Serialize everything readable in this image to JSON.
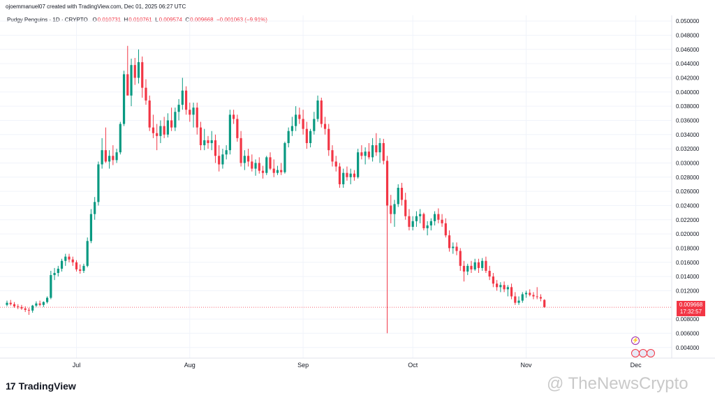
{
  "header": {
    "attribution": "ojoemmanuel07 created with TradingView.com, Dec 01, 2025 06:27 UTC"
  },
  "legend": {
    "symbol": "Pudgy Penguins · 1D · CRYPTO",
    "open_label": "O",
    "open": "0.010731",
    "high_label": "H",
    "high": "0.010761",
    "low_label": "L",
    "low": "0.009574",
    "close_label": "C",
    "close": "0.009668",
    "change": "−0.001063 (−9.91%)"
  },
  "price_tag": {
    "price": "0.009668",
    "countdown": "17:32:57"
  },
  "branding": {
    "logo_mark": "17",
    "logo_text": "TradingView",
    "watermark": "@ TheNewsCrypto"
  },
  "colors": {
    "up": "#089981",
    "down": "#f23645",
    "grid": "#f0f3fa",
    "last_price_line": "#f23645"
  },
  "chart_data": {
    "type": "candlestick",
    "y_axis_ticks": [
      "0.050000",
      "0.048000",
      "0.046000",
      "0.044000",
      "0.042000",
      "0.040000",
      "0.038000",
      "0.036000",
      "0.034000",
      "0.032000",
      "0.030000",
      "0.028000",
      "0.026000",
      "0.024000",
      "0.022000",
      "0.020000",
      "0.018000",
      "0.016000",
      "0.014000",
      "0.012000",
      "0.008000",
      "0.006000",
      "0.004000"
    ],
    "ylim": [
      0.0025,
      0.0508
    ],
    "x_axis_ticks": [
      {
        "label": "Jul",
        "index": 19
      },
      {
        "label": "Aug",
        "index": 50
      },
      {
        "label": "Sep",
        "index": 81
      },
      {
        "label": "Oct",
        "index": 111
      },
      {
        "label": "Nov",
        "index": 142
      },
      {
        "label": "Dec",
        "index": 172
      }
    ],
    "last_price": 0.009668,
    "ohlc": [
      [
        0.01,
        0.0106,
        0.0098,
        0.0103
      ],
      [
        0.0103,
        0.0107,
        0.0099,
        0.0101
      ],
      [
        0.0101,
        0.0104,
        0.0096,
        0.0098
      ],
      [
        0.0098,
        0.0101,
        0.0094,
        0.0097
      ],
      [
        0.0097,
        0.01,
        0.0093,
        0.0095
      ],
      [
        0.0095,
        0.0098,
        0.009,
        0.0093
      ],
      [
        0.0093,
        0.0096,
        0.0086,
        0.0092
      ],
      [
        0.0092,
        0.01,
        0.0089,
        0.0099
      ],
      [
        0.0099,
        0.0105,
        0.0097,
        0.0102
      ],
      [
        0.0102,
        0.0106,
        0.0098,
        0.01
      ],
      [
        0.01,
        0.0105,
        0.0097,
        0.0104
      ],
      [
        0.0104,
        0.0112,
        0.0102,
        0.011
      ],
      [
        0.011,
        0.0148,
        0.0108,
        0.0142
      ],
      [
        0.0142,
        0.0152,
        0.0135,
        0.0145
      ],
      [
        0.0145,
        0.0155,
        0.014,
        0.0151
      ],
      [
        0.0151,
        0.0165,
        0.0147,
        0.0162
      ],
      [
        0.0162,
        0.0172,
        0.0155,
        0.0168
      ],
      [
        0.0168,
        0.0172,
        0.016,
        0.0164
      ],
      [
        0.0164,
        0.0168,
        0.0155,
        0.016
      ],
      [
        0.016,
        0.0163,
        0.0147,
        0.015
      ],
      [
        0.015,
        0.0157,
        0.0144,
        0.0148
      ],
      [
        0.0148,
        0.0158,
        0.0145,
        0.0155
      ],
      [
        0.0155,
        0.0195,
        0.0153,
        0.019
      ],
      [
        0.019,
        0.0235,
        0.0187,
        0.0228
      ],
      [
        0.0228,
        0.0252,
        0.022,
        0.0245
      ],
      [
        0.0245,
        0.0302,
        0.024,
        0.0298
      ],
      [
        0.0298,
        0.0335,
        0.0292,
        0.0318
      ],
      [
        0.0318,
        0.035,
        0.03,
        0.0302
      ],
      [
        0.0302,
        0.0318,
        0.0292,
        0.031
      ],
      [
        0.031,
        0.0325,
        0.0297,
        0.0304
      ],
      [
        0.0304,
        0.032,
        0.03,
        0.0315
      ],
      [
        0.0315,
        0.0358,
        0.0312,
        0.0355
      ],
      [
        0.0355,
        0.043,
        0.0352,
        0.0425
      ],
      [
        0.0425,
        0.0465,
        0.0398,
        0.0395
      ],
      [
        0.0395,
        0.0447,
        0.038,
        0.0438
      ],
      [
        0.0438,
        0.0448,
        0.041,
        0.042
      ],
      [
        0.042,
        0.046,
        0.0412,
        0.0442
      ],
      [
        0.0442,
        0.045,
        0.0392,
        0.0406
      ],
      [
        0.0406,
        0.0418,
        0.0382,
        0.0388
      ],
      [
        0.0388,
        0.0395,
        0.0345,
        0.035
      ],
      [
        0.035,
        0.0368,
        0.0335,
        0.0342
      ],
      [
        0.0342,
        0.0355,
        0.0318,
        0.0338
      ],
      [
        0.0338,
        0.036,
        0.0328,
        0.0352
      ],
      [
        0.0352,
        0.0365,
        0.0335,
        0.034
      ],
      [
        0.034,
        0.037,
        0.0336,
        0.036
      ],
      [
        0.036,
        0.0378,
        0.0345,
        0.035
      ],
      [
        0.035,
        0.0378,
        0.0345,
        0.0372
      ],
      [
        0.0372,
        0.039,
        0.036,
        0.0382
      ],
      [
        0.0382,
        0.042,
        0.0375,
        0.0402
      ],
      [
        0.0402,
        0.0408,
        0.0368,
        0.0375
      ],
      [
        0.0375,
        0.0385,
        0.0358,
        0.0368
      ],
      [
        0.0368,
        0.0385,
        0.035,
        0.0378
      ],
      [
        0.0378,
        0.0385,
        0.034,
        0.035
      ],
      [
        0.035,
        0.0358,
        0.0318,
        0.0325
      ],
      [
        0.0325,
        0.0348,
        0.0318,
        0.0332
      ],
      [
        0.0332,
        0.0338,
        0.032,
        0.0328
      ],
      [
        0.0328,
        0.0345,
        0.0318,
        0.0332
      ],
      [
        0.0332,
        0.034,
        0.03,
        0.031
      ],
      [
        0.031,
        0.0325,
        0.0288,
        0.0298
      ],
      [
        0.0298,
        0.032,
        0.0292,
        0.0312
      ],
      [
        0.0312,
        0.0325,
        0.0305,
        0.0318
      ],
      [
        0.0318,
        0.0375,
        0.0312,
        0.0368
      ],
      [
        0.0368,
        0.0375,
        0.0355,
        0.0362
      ],
      [
        0.0362,
        0.0368,
        0.033,
        0.0335
      ],
      [
        0.0335,
        0.0345,
        0.0295,
        0.03
      ],
      [
        0.03,
        0.0318,
        0.029,
        0.031
      ],
      [
        0.031,
        0.032,
        0.0295,
        0.0302
      ],
      [
        0.0302,
        0.0312,
        0.0288,
        0.0292
      ],
      [
        0.0292,
        0.0305,
        0.0282,
        0.03
      ],
      [
        0.03,
        0.0308,
        0.0285,
        0.0289
      ],
      [
        0.0289,
        0.0296,
        0.0278,
        0.0286
      ],
      [
        0.0286,
        0.031,
        0.0283,
        0.0308
      ],
      [
        0.0308,
        0.0315,
        0.029,
        0.0292
      ],
      [
        0.0292,
        0.0305,
        0.028,
        0.0286
      ],
      [
        0.0286,
        0.0296,
        0.0283,
        0.029
      ],
      [
        0.029,
        0.03,
        0.0283,
        0.0287
      ],
      [
        0.0287,
        0.033,
        0.0285,
        0.0328
      ],
      [
        0.0328,
        0.035,
        0.0322,
        0.0345
      ],
      [
        0.0345,
        0.0365,
        0.0338,
        0.0352
      ],
      [
        0.0352,
        0.038,
        0.0345,
        0.0368
      ],
      [
        0.0368,
        0.0378,
        0.0355,
        0.0362
      ],
      [
        0.0362,
        0.0375,
        0.034,
        0.0348
      ],
      [
        0.0348,
        0.0358,
        0.032,
        0.0328
      ],
      [
        0.0328,
        0.0348,
        0.0322,
        0.0345
      ],
      [
        0.0345,
        0.0372,
        0.034,
        0.0362
      ],
      [
        0.0362,
        0.0395,
        0.0358,
        0.0388
      ],
      [
        0.0388,
        0.0392,
        0.035,
        0.0355
      ],
      [
        0.0355,
        0.0365,
        0.034,
        0.0348
      ],
      [
        0.0348,
        0.0355,
        0.031,
        0.0318
      ],
      [
        0.0318,
        0.0325,
        0.0295,
        0.0302
      ],
      [
        0.0302,
        0.031,
        0.0288,
        0.0295
      ],
      [
        0.0295,
        0.03,
        0.0265,
        0.027
      ],
      [
        0.027,
        0.0292,
        0.0265,
        0.0286
      ],
      [
        0.0286,
        0.0295,
        0.0275,
        0.028
      ],
      [
        0.028,
        0.0292,
        0.027,
        0.0285
      ],
      [
        0.0285,
        0.029,
        0.0275,
        0.028
      ],
      [
        0.028,
        0.032,
        0.0278,
        0.0315
      ],
      [
        0.0315,
        0.0325,
        0.0305,
        0.031
      ],
      [
        0.031,
        0.0322,
        0.0298,
        0.0316
      ],
      [
        0.0316,
        0.0328,
        0.0305,
        0.0308
      ],
      [
        0.0308,
        0.0335,
        0.0302,
        0.0325
      ],
      [
        0.0325,
        0.0342,
        0.031,
        0.0315
      ],
      [
        0.0315,
        0.0335,
        0.03,
        0.0328
      ],
      [
        0.0328,
        0.0334,
        0.0298,
        0.0303
      ],
      [
        0.0303,
        0.031,
        0.006,
        0.024
      ],
      [
        0.024,
        0.0255,
        0.0215,
        0.0228
      ],
      [
        0.0228,
        0.0248,
        0.021,
        0.0242
      ],
      [
        0.0242,
        0.027,
        0.0238,
        0.0265
      ],
      [
        0.0265,
        0.0272,
        0.024,
        0.0248
      ],
      [
        0.0248,
        0.0258,
        0.022,
        0.0225
      ],
      [
        0.0225,
        0.0235,
        0.0205,
        0.021
      ],
      [
        0.021,
        0.0225,
        0.0205,
        0.0218
      ],
      [
        0.0218,
        0.0232,
        0.021,
        0.0225
      ],
      [
        0.0225,
        0.0235,
        0.0215,
        0.0228
      ],
      [
        0.0228,
        0.023,
        0.0205,
        0.0208
      ],
      [
        0.0208,
        0.0218,
        0.0198,
        0.0212
      ],
      [
        0.0212,
        0.0222,
        0.0205,
        0.0218
      ],
      [
        0.0218,
        0.0232,
        0.0212,
        0.0228
      ],
      [
        0.0228,
        0.0236,
        0.0215,
        0.022
      ],
      [
        0.022,
        0.0228,
        0.021,
        0.0215
      ],
      [
        0.0215,
        0.0222,
        0.0195,
        0.0198
      ],
      [
        0.0198,
        0.0205,
        0.0175,
        0.018
      ],
      [
        0.018,
        0.0188,
        0.0172,
        0.0182
      ],
      [
        0.0182,
        0.0188,
        0.017,
        0.0176
      ],
      [
        0.0176,
        0.018,
        0.0148,
        0.0155
      ],
      [
        0.0155,
        0.0162,
        0.0133,
        0.0147
      ],
      [
        0.0147,
        0.0158,
        0.0142,
        0.0155
      ],
      [
        0.0155,
        0.0162,
        0.0145,
        0.015
      ],
      [
        0.015,
        0.0165,
        0.0148,
        0.016
      ],
      [
        0.016,
        0.0165,
        0.0145,
        0.0152
      ],
      [
        0.0152,
        0.0166,
        0.0148,
        0.0162
      ],
      [
        0.0162,
        0.0168,
        0.0145,
        0.0148
      ],
      [
        0.0148,
        0.0155,
        0.0135,
        0.014
      ],
      [
        0.014,
        0.0145,
        0.0125,
        0.013
      ],
      [
        0.013,
        0.0135,
        0.012,
        0.0125
      ],
      [
        0.0125,
        0.0132,
        0.0118,
        0.0128
      ],
      [
        0.0128,
        0.0133,
        0.0118,
        0.0122
      ],
      [
        0.0122,
        0.0128,
        0.0112,
        0.0125
      ],
      [
        0.0125,
        0.013,
        0.0108,
        0.0112
      ],
      [
        0.0112,
        0.0118,
        0.01,
        0.0103
      ],
      [
        0.0103,
        0.0112,
        0.01,
        0.0106
      ],
      [
        0.0106,
        0.0118,
        0.0103,
        0.0115
      ],
      [
        0.0115,
        0.012,
        0.011,
        0.0117
      ],
      [
        0.0117,
        0.0122,
        0.0112,
        0.0114
      ],
      [
        0.0114,
        0.0118,
        0.0108,
        0.0112
      ],
      [
        0.0112,
        0.0125,
        0.0108,
        0.0111
      ],
      [
        0.0111,
        0.0115,
        0.0105,
        0.0109
      ],
      [
        0.0107,
        0.0108,
        0.0096,
        0.0097
      ]
    ]
  }
}
